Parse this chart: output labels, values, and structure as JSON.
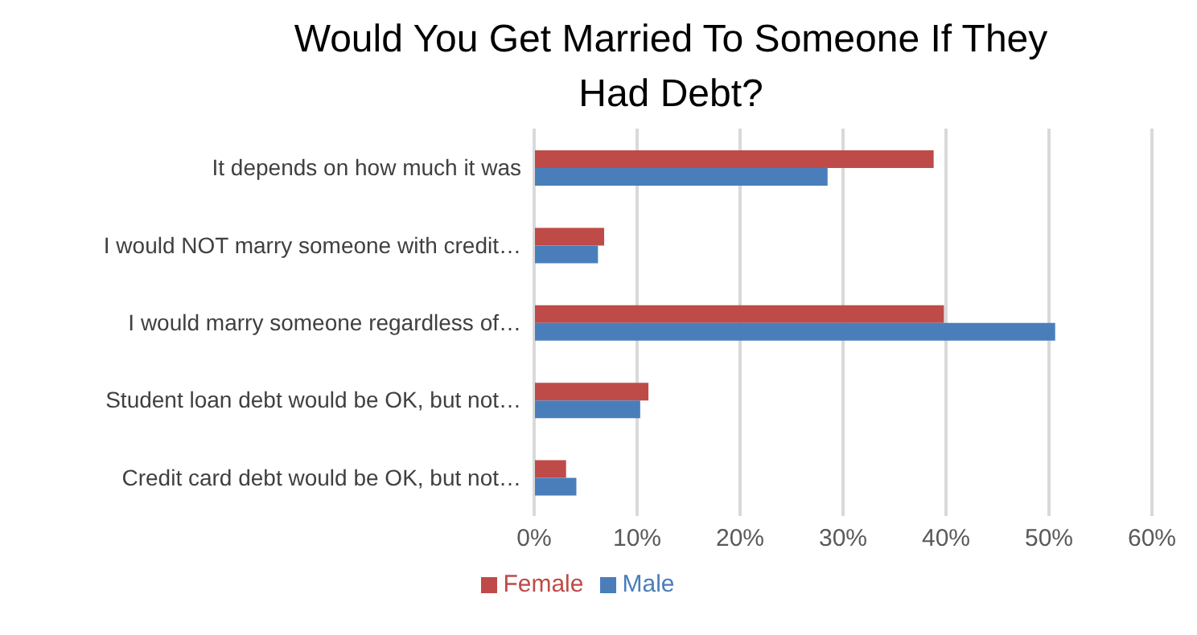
{
  "chart_data": {
    "type": "bar",
    "orientation": "horizontal",
    "title": "Would You Get Married To Someone If They Had Debt?",
    "categories": [
      "It depends on how much it was",
      "I would NOT marry someone with credit…",
      "I would marry someone regardless of…",
      "Student loan debt would be OK, but not…",
      "Credit card debt would be OK, but not…"
    ],
    "series": [
      {
        "name": "Female",
        "color": "#be4b48",
        "values": [
          38.8,
          6.8,
          39.8,
          11.1,
          3.1
        ]
      },
      {
        "name": "Male",
        "color": "#4a7ebb",
        "values": [
          28.5,
          6.2,
          50.6,
          10.3,
          4.1
        ]
      }
    ],
    "xlim": [
      0,
      60
    ],
    "xticks": [
      {
        "value": 0,
        "label": "0%"
      },
      {
        "value": 10,
        "label": "10%"
      },
      {
        "value": 20,
        "label": "20%"
      },
      {
        "value": 30,
        "label": "30%"
      },
      {
        "value": 40,
        "label": "40%"
      },
      {
        "value": 50,
        "label": "50%"
      },
      {
        "value": 60,
        "label": "60%"
      }
    ],
    "grid": "x",
    "legend": "bottom"
  }
}
